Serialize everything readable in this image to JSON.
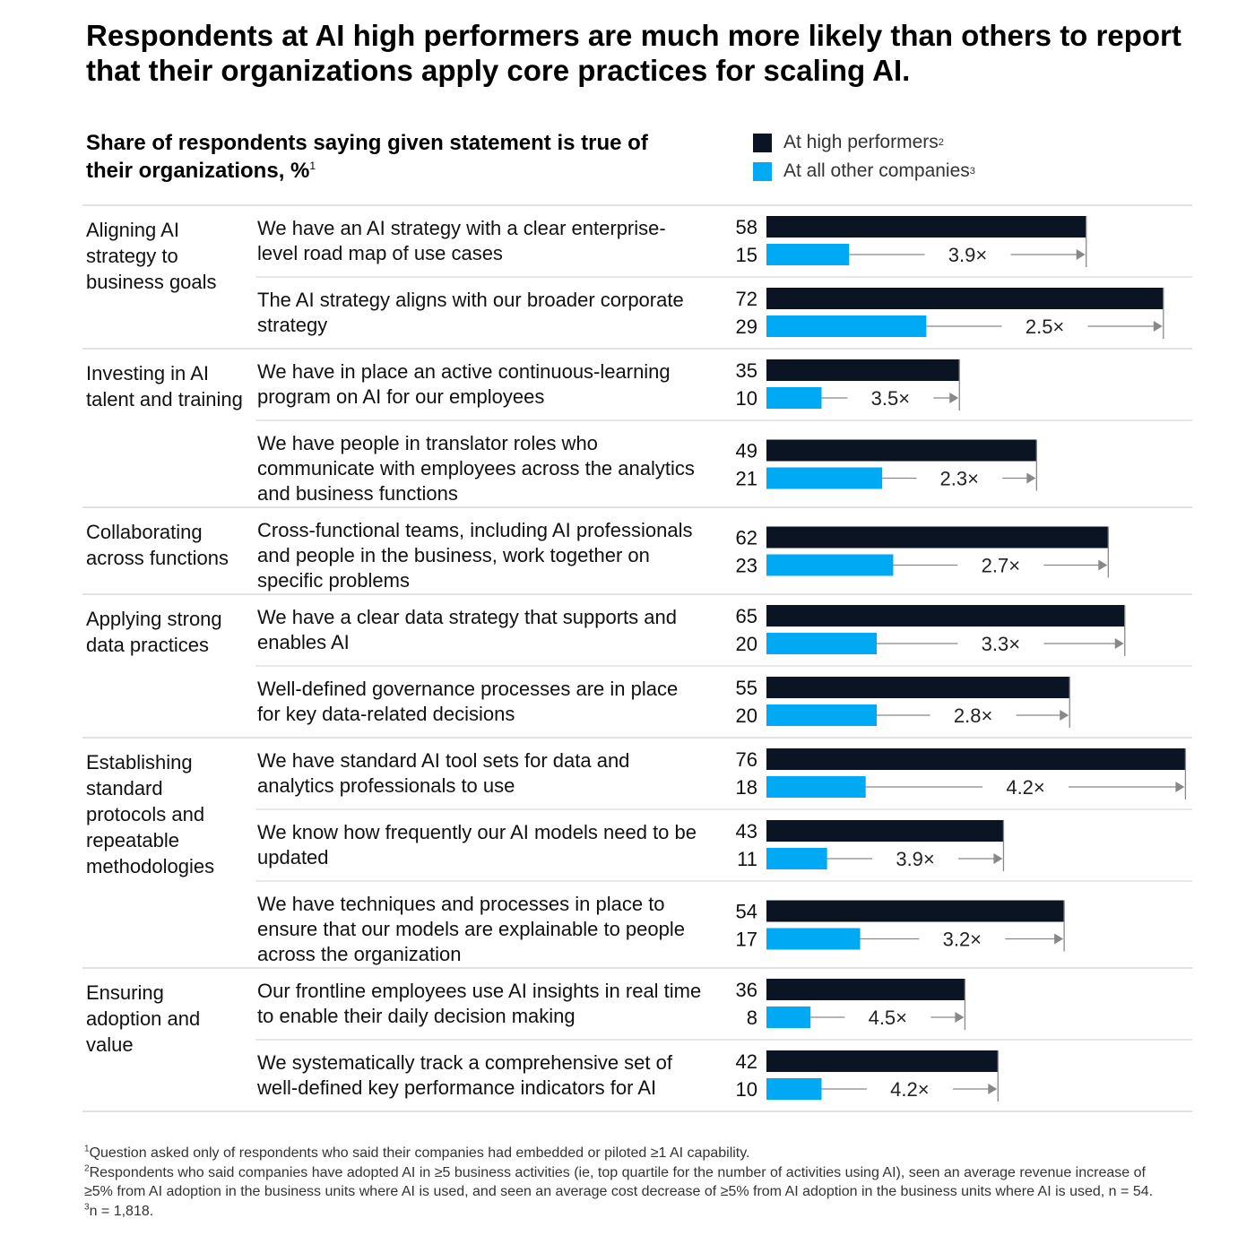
{
  "title": "Respondents at AI high performers are much more likely than others to report that their organizations apply core practices for scaling AI.",
  "subtitle": "Share of respondents saying given statement is true of their organizations, %",
  "subtitle_note": "1",
  "legend": [
    {
      "label": "At high performers",
      "note": "2",
      "color": "#0b1423"
    },
    {
      "label": "At all other companies",
      "note": "3",
      "color": "#00a9f4"
    }
  ],
  "colors": {
    "high": "#0b1423",
    "other": "#00a9f4",
    "arrow": "#888888",
    "divider": "#cfcfcf"
  },
  "chart_data": {
    "type": "bar",
    "orientation": "horizontal",
    "unit": "%",
    "series": [
      {
        "name": "At high performers",
        "values": [
          58,
          72,
          35,
          49,
          62,
          65,
          55,
          76,
          43,
          54,
          36,
          42
        ]
      },
      {
        "name": "At all other companies",
        "values": [
          15,
          29,
          10,
          21,
          23,
          20,
          20,
          18,
          11,
          17,
          8,
          10
        ]
      }
    ],
    "groups": [
      {
        "label": "Aligning AI strategy to business goals",
        "items": [
          {
            "statement": "We have an AI strategy with a clear enterprise-level road map of use cases",
            "high": 58,
            "other": 15,
            "ratio": "3.9×"
          },
          {
            "statement": "The AI strategy aligns with our broader corporate strategy",
            "high": 72,
            "other": 29,
            "ratio": "2.5×"
          }
        ]
      },
      {
        "label": "Investing in AI talent and training",
        "items": [
          {
            "statement": "We have in place an active continuous-learning program on AI for our employees",
            "high": 35,
            "other": 10,
            "ratio": "3.5×"
          },
          {
            "statement": "We have people in translator roles who communicate with employees across the analytics and business functions",
            "high": 49,
            "other": 21,
            "ratio": "2.3×"
          }
        ]
      },
      {
        "label": "Collaborating across functions",
        "items": [
          {
            "statement": "Cross-functional teams, including AI professionals and people in the business, work together on specific problems",
            "high": 62,
            "other": 23,
            "ratio": "2.7×"
          }
        ]
      },
      {
        "label": "Applying strong data practices",
        "items": [
          {
            "statement": "We have a clear data strategy that supports and enables AI",
            "high": 65,
            "other": 20,
            "ratio": "3.3×"
          },
          {
            "statement": "Well-defined governance processes are in place for key data-related decisions",
            "high": 55,
            "other": 20,
            "ratio": "2.8×"
          }
        ]
      },
      {
        "label": "Establishing standard protocols and repeatable methodologies",
        "items": [
          {
            "statement": "We have standard AI tool sets for data and analytics professionals to use",
            "high": 76,
            "other": 18,
            "ratio": "4.2×"
          },
          {
            "statement": "We know how frequently our AI models need to be updated",
            "high": 43,
            "other": 11,
            "ratio": "3.9×"
          },
          {
            "statement": "We have techniques and processes in place to ensure that our models are explainable to people across the organization",
            "high": 54,
            "other": 17,
            "ratio": "3.2×"
          }
        ]
      },
      {
        "label": "Ensuring adoption and value",
        "items": [
          {
            "statement": "Our frontline employees use AI insights in real time to enable their daily decision making",
            "high": 36,
            "other": 8,
            "ratio": "4.5×"
          },
          {
            "statement": "We systematically track a comprehensive set of well-defined key performance indicators for AI",
            "high": 42,
            "other": 10,
            "ratio": "4.2×"
          }
        ]
      }
    ]
  },
  "footnotes": [
    {
      "mark": "1",
      "text": "Question asked only of respondents who said their companies had embedded or piloted ≥1 AI capability."
    },
    {
      "mark": "2",
      "text": "Respondents who said companies have adopted AI in ≥5 business activities (ie, top quartile for the number of activities using AI), seen an average revenue increase of ≥5% from AI adoption in the business units where AI is used, and seen an average cost decrease of  ≥5% from AI adoption in the business units where AI is used, n = 54."
    },
    {
      "mark": "3",
      "text": "n = 1,818."
    }
  ]
}
